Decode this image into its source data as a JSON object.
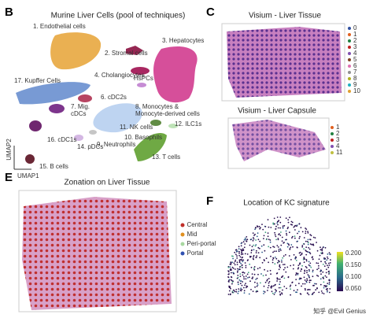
{
  "panels": [
    {
      "letter": "B",
      "title": "Murine Liver Cells (pool of techniques)",
      "clusters": [
        {
          "lines": [
            "1. Endothelial cells"
          ],
          "color": "#e0a030"
        },
        {
          "lines": [
            "2. Stromal cells"
          ],
          "color": "#333333"
        },
        {
          "lines": [
            "3. Hepatocytes"
          ],
          "color": "#c0308a"
        },
        {
          "lines": [
            "4. Cholangiocytes"
          ],
          "color": "#901048"
        },
        {
          "lines": [
            "HsPCs"
          ],
          "color": "#b070c0"
        },
        {
          "lines": [
            "17. Kupffer Cells"
          ],
          "color": "#5080c0"
        },
        {
          "lines": [
            "6. cDC2s"
          ],
          "color": "#333333"
        },
        {
          "lines": [
            "7. Mig.",
            "cDCs"
          ],
          "color": "#333333"
        },
        {
          "lines": [
            "8. Monocytes &",
            "Monocyte-derived cells"
          ],
          "color": "#9ab8e0"
        },
        {
          "lines": [
            "11. NK cells"
          ],
          "color": "#333333"
        },
        {
          "lines": [
            "12. ILC1s"
          ],
          "color": "#a0c8a0"
        },
        {
          "lines": [
            "10. Basophils"
          ],
          "color": "#333333"
        },
        {
          "lines": [
            "16. cDC1s"
          ],
          "color": "#333333"
        },
        {
          "lines": [
            "14. pDCs"
          ],
          "color": "#333333"
        },
        {
          "lines": [
            "9. Neutrophils"
          ],
          "color": "#999999"
        },
        {
          "lines": [
            "13. T cells"
          ],
          "color": "#60a030"
        },
        {
          "lines": [
            "15. B cells"
          ],
          "color": "#333333"
        }
      ],
      "axis_y": "UMAP2",
      "axis_x": "UMAP1"
    },
    {
      "letter": "C",
      "title": "Visium - Liver Tissue",
      "legend": [
        {
          "label": "0",
          "color": "#3050a0"
        },
        {
          "label": "1",
          "color": "#e06020"
        },
        {
          "label": "2",
          "color": "#208040"
        },
        {
          "label": "3",
          "color": "#c02020"
        },
        {
          "label": "4",
          "color": "#8050b0"
        },
        {
          "label": "5",
          "color": "#804020"
        },
        {
          "label": "6",
          "color": "#e070b0"
        },
        {
          "label": "7",
          "color": "#909090"
        },
        {
          "label": "8",
          "color": "#b0b020"
        },
        {
          "label": "9",
          "color": "#20b0c0"
        },
        {
          "label": "10",
          "color": "#e0a030"
        }
      ],
      "subtitle": "Visium - Liver Capsule",
      "legend2": [
        {
          "label": "1",
          "color": "#e06020"
        },
        {
          "label": "2",
          "color": "#208040"
        },
        {
          "label": "3",
          "color": "#c02020"
        },
        {
          "label": "4",
          "color": "#8050b0"
        },
        {
          "label": "11",
          "color": "#c0c040"
        }
      ]
    },
    {
      "letter": "E",
      "title": "Zonation on Liver Tissue",
      "legend": [
        {
          "label": "Central",
          "color": "#c0302a"
        },
        {
          "label": "Mid",
          "color": "#e09020"
        },
        {
          "label": "Peri-portal",
          "color": "#a8d8a0"
        },
        {
          "label": "Portal",
          "color": "#3050b0"
        }
      ]
    },
    {
      "letter": "F",
      "title": "Location of KC signature",
      "colorbar": [
        "0.200",
        "0.150",
        "0.100",
        "0.050"
      ]
    }
  ],
  "watermark": "知乎 @Evil Genius"
}
